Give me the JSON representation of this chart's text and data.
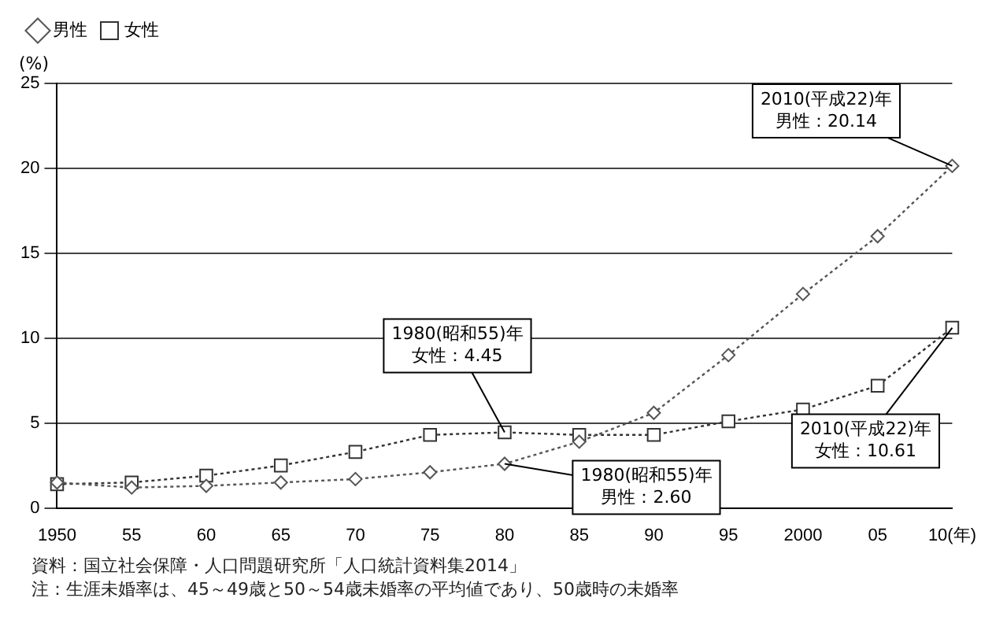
{
  "chart_data": {
    "type": "line",
    "ylabel": "(%)",
    "categories": [
      "1950",
      "55",
      "60",
      "65",
      "70",
      "75",
      "80",
      "85",
      "90",
      "95",
      "2000",
      "05",
      "10(年)"
    ],
    "series": [
      {
        "name": "男性",
        "color": "#555555",
        "marker": "diamond",
        "values": [
          1.5,
          1.2,
          1.3,
          1.5,
          1.7,
          2.1,
          2.6,
          3.9,
          5.6,
          9,
          12.6,
          16,
          20.14
        ]
      },
      {
        "name": "女性",
        "color": "#333333",
        "marker": "square",
        "values": [
          1.4,
          1.5,
          1.9,
          2.5,
          3.3,
          4.3,
          4.45,
          4.3,
          4.3,
          5.1,
          5.8,
          7.2,
          10.61
        ]
      }
    ],
    "ylim": [
      0,
      25
    ],
    "yticks": [
      0,
      5,
      10,
      15,
      20,
      25
    ],
    "grid": "y",
    "legend": "top left",
    "line_style": "dotted",
    "annotations": [
      {
        "text": "2010(平成22)年男性：20.14",
        "x": "10(年)",
        "y": 20.14
      },
      {
        "text": "1980(昭和55)年女性：4.45",
        "x": "80",
        "y": 4.45
      },
      {
        "text": "1980(昭和55)年男性：2.60",
        "x": "80",
        "y": 2.6
      },
      {
        "text": "2010(平成22)年女性：10.61",
        "x": "10(年)",
        "y": 10.61
      },
      "資料：国立社会保障・人口問題研究所「人口統計資料集2014」",
      "注：生涯未婚率は、45～49歳と50～54歳未婚率の平均値であり、50歳時の未婚率"
    ]
  }
}
